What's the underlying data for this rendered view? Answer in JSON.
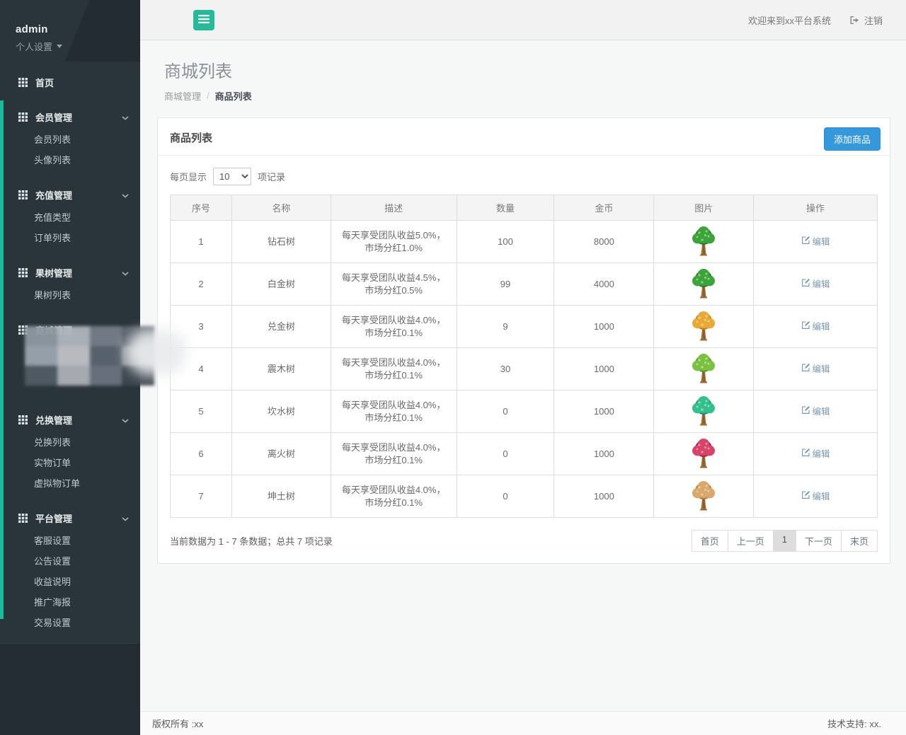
{
  "app": {
    "welcome": "欢迎来到xx平台系统",
    "logout_label": "注销"
  },
  "sidebar": {
    "username": "admin",
    "profile_settings": "个人设置",
    "home": "首页",
    "sections": [
      {
        "label": "会员管理",
        "children": [
          "会员列表",
          "头像列表"
        ],
        "censored": false
      },
      {
        "label": "充值管理",
        "children": [
          "充值类型",
          "订单列表"
        ],
        "censored": false
      },
      {
        "label": "果树管理",
        "children": [
          "果树列表"
        ],
        "censored": false
      },
      {
        "label": "商城管理",
        "children": [],
        "censored": true
      },
      {
        "label": "兑换管理",
        "children": [
          "兑换列表",
          "实物订单",
          "虚拟物订单"
        ],
        "censored": false
      },
      {
        "label": "平台管理",
        "children": [
          "客服设置",
          "公告设置",
          "收益说明",
          "推广海报",
          "交易设置"
        ],
        "censored": false
      }
    ]
  },
  "page": {
    "title": "商城列表",
    "breadcrumb": [
      "商城管理",
      "商品列表"
    ]
  },
  "card": {
    "title": "商品列表",
    "add_button": "添加商品",
    "per_page": {
      "label_before": "每页显示",
      "label_after": "项记录",
      "selected": "10",
      "options": [
        "10"
      ]
    }
  },
  "table": {
    "columns": [
      "序号",
      "名称",
      "描述",
      "数量",
      "金币",
      "图片",
      "操作"
    ],
    "edit_label": "编辑",
    "rows": [
      {
        "index": "1",
        "name": "钻石树",
        "desc": "每天享受团队收益5.0%，市场分红1.0%",
        "qty": "100",
        "coins": "8000",
        "tree": {
          "name": "green-tree",
          "foliage": "#3FA33C",
          "light": "#8BD47F",
          "dark": "#2C7A2A"
        }
      },
      {
        "index": "2",
        "name": "白金树",
        "desc": "每天享受团队收益4.5%，市场分红0.5%",
        "qty": "99",
        "coins": "4000",
        "tree": {
          "name": "green-tree",
          "foliage": "#3FA33C",
          "light": "#8BD47F",
          "dark": "#2C7A2A"
        }
      },
      {
        "index": "3",
        "name": "兑金树",
        "desc": "每天享受团队收益4.0%，市场分红0.1%",
        "qty": "9",
        "coins": "1000",
        "tree": {
          "name": "gold-tree",
          "foliage": "#E8A93B",
          "light": "#F6D37A",
          "dark": "#B97F1F"
        }
      },
      {
        "index": "4",
        "name": "震木树",
        "desc": "每天享受团队收益4.0%，市场分红0.1%",
        "qty": "30",
        "coins": "1000",
        "tree": {
          "name": "lime-tree",
          "foliage": "#7CC043",
          "light": "#B8E287",
          "dark": "#55962B"
        }
      },
      {
        "index": "5",
        "name": "坎水树",
        "desc": "每天享受团队收益4.0%，市场分红0.1%",
        "qty": "0",
        "coins": "1000",
        "tree": {
          "name": "teal-tree",
          "foliage": "#35BE8E",
          "light": "#8FE0C2",
          "dark": "#1F8F68"
        }
      },
      {
        "index": "6",
        "name": "离火树",
        "desc": "每天享受团队收益4.0%，市场分红0.1%",
        "qty": "0",
        "coins": "1000",
        "tree": {
          "name": "red-tree",
          "foliage": "#D6446A",
          "light": "#EC8FA6",
          "dark": "#A52747"
        }
      },
      {
        "index": "7",
        "name": "坤土树",
        "desc": "每天享受团队收益4.0%，市场分红0.1%",
        "qty": "0",
        "coins": "1000",
        "tree": {
          "name": "tan-tree",
          "foliage": "#D8A86C",
          "light": "#EDCD9F",
          "dark": "#A97B43"
        }
      }
    ]
  },
  "footer_bar": {
    "status": "当前数据为 1 - 7 条数据；总共 7 项记录",
    "pagination": [
      {
        "label": "首页",
        "active": false
      },
      {
        "label": "上一页",
        "active": false
      },
      {
        "label": "1",
        "active": true
      },
      {
        "label": "下一页",
        "active": false
      },
      {
        "label": "末页",
        "active": false
      }
    ]
  },
  "footer": {
    "left": "版权所有 :xx",
    "right": "技术支持: xx."
  },
  "colors": {
    "accent_green": "#1ABB9C",
    "toggle_green": "#26B99A",
    "button_blue": "#3498DB",
    "link_blue": "#7D98AE",
    "trunk_brown": "#9C6B35"
  }
}
